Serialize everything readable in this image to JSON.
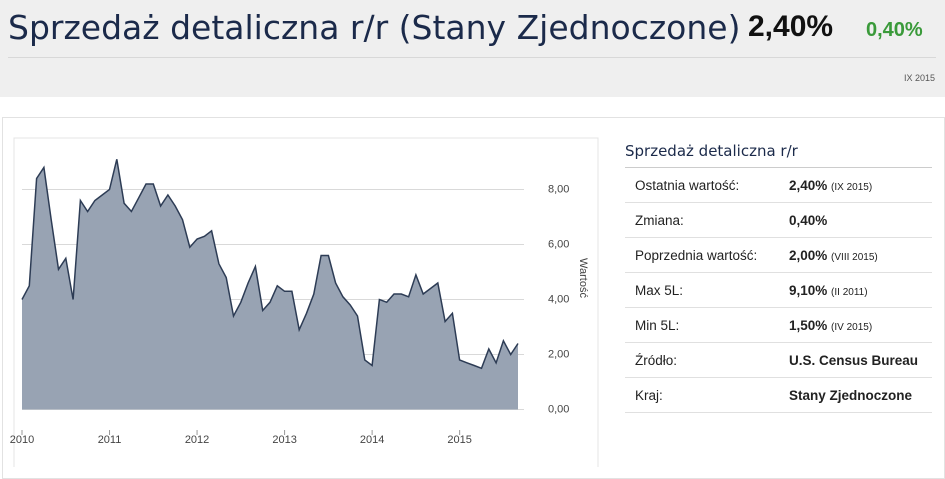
{
  "header": {
    "title": "Sprzedaż detaliczna r/r (Stany Zjednoczone)",
    "value": "2,40%",
    "change": "0,40%",
    "date": "IX 2015"
  },
  "chart_data": {
    "type": "area",
    "y_label": "Wartość",
    "color": "#2d3c55",
    "fill": "#98a3b3",
    "categories": [
      "2010",
      null,
      null,
      null,
      null,
      null,
      null,
      null,
      null,
      null,
      null,
      null,
      "2011",
      null,
      null,
      null,
      null,
      null,
      null,
      null,
      null,
      null,
      null,
      null,
      "2012",
      null,
      null,
      null,
      null,
      null,
      null,
      null,
      null,
      null,
      null,
      null,
      "2013",
      null,
      null,
      null,
      null,
      null,
      null,
      null,
      null,
      null,
      null,
      null,
      "2014",
      null,
      null,
      null,
      null,
      null,
      null,
      null,
      null,
      null,
      null,
      null,
      "2015",
      null,
      null,
      null,
      null,
      null,
      null,
      null,
      null
    ],
    "values": [
      4.0,
      4.5,
      8.4,
      8.8,
      6.9,
      5.1,
      5.5,
      4.0,
      7.6,
      7.2,
      7.6,
      7.8,
      8.0,
      9.1,
      7.5,
      7.2,
      7.7,
      8.2,
      8.2,
      7.4,
      7.8,
      7.4,
      6.9,
      5.9,
      6.2,
      6.3,
      6.5,
      5.3,
      4.8,
      3.4,
      3.9,
      4.6,
      5.2,
      3.6,
      3.9,
      4.5,
      4.3,
      4.3,
      2.9,
      3.5,
      4.2,
      5.6,
      5.6,
      4.6,
      4.1,
      3.8,
      3.4,
      1.8,
      1.6,
      4.0,
      3.9,
      4.2,
      4.2,
      4.1,
      4.9,
      4.2,
      4.4,
      4.6,
      3.2,
      3.5,
      1.8,
      1.7,
      1.6,
      1.5,
      2.2,
      1.7,
      2.5,
      2.0,
      2.4
    ],
    "ylim": [
      -0.2,
      9.8
    ],
    "yticks": [
      {
        "value": 0,
        "label": "0,00"
      },
      {
        "value": 2,
        "label": "2,00"
      },
      {
        "value": 4,
        "label": "4,00"
      },
      {
        "value": 6,
        "label": "6,00"
      },
      {
        "value": 8,
        "label": "8,00"
      }
    ],
    "grid": true
  },
  "table": {
    "title": "Sprzedaż detaliczna r/r",
    "rows": [
      [
        "Ostatnia wartość:",
        "2,40%",
        "(IX 2015)"
      ],
      [
        "Zmiana:",
        "0,40%"
      ],
      [
        "Poprzednia wartość:",
        "2,00%",
        "(VIII 2015)"
      ],
      [
        "Max 5L:",
        "9,10%",
        "(II 2011)"
      ],
      [
        "Min 5L:",
        "1,50%",
        "(IV 2015)"
      ],
      [
        "Źródło:",
        "U.S. Census Bureau"
      ],
      [
        "Kraj:",
        "Stany Zjednoczone"
      ]
    ]
  }
}
